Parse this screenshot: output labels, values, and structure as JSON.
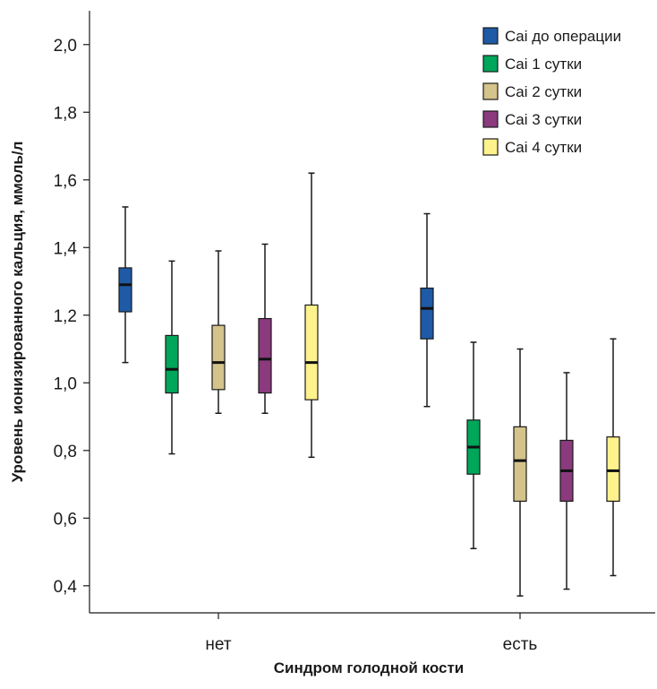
{
  "chart_data": {
    "type": "boxplot",
    "xlabel": "Синдром голодной кости",
    "ylabel": "Уровень ионизированного кальция, ммоль/л",
    "ylim": [
      0.32,
      2.1
    ],
    "y_ticks": [
      "2,0",
      "1,8",
      "1,6",
      "1,4",
      "1,2",
      "1,0",
      "0,8",
      "0,6",
      "0,4"
    ],
    "y_tick_values": [
      2.0,
      1.8,
      1.6,
      1.4,
      1.2,
      1.0,
      0.8,
      0.6,
      0.4
    ],
    "categories": [
      "нет",
      "есть"
    ],
    "legend_position": "top-right",
    "grid": false,
    "series": [
      {
        "name": "Cai до операции",
        "color": "#1f5aa6",
        "boxes": [
          {
            "min": 1.06,
            "q1": 1.21,
            "median": 1.29,
            "q3": 1.34,
            "max": 1.52
          },
          {
            "min": 0.93,
            "q1": 1.13,
            "median": 1.22,
            "q3": 1.28,
            "max": 1.5
          }
        ]
      },
      {
        "name": "Cai 1 сутки",
        "color": "#00a65a",
        "boxes": [
          {
            "min": 0.79,
            "q1": 0.97,
            "median": 1.04,
            "q3": 1.14,
            "max": 1.36
          },
          {
            "min": 0.51,
            "q1": 0.73,
            "median": 0.81,
            "q3": 0.89,
            "max": 1.12
          }
        ]
      },
      {
        "name": "Cai 2 сутки",
        "color": "#d4c38a",
        "boxes": [
          {
            "min": 0.91,
            "q1": 0.98,
            "median": 1.06,
            "q3": 1.17,
            "max": 1.39
          },
          {
            "min": 0.37,
            "q1": 0.65,
            "median": 0.77,
            "q3": 0.87,
            "max": 1.1
          }
        ]
      },
      {
        "name": "Cai 3 сутки",
        "color": "#8b3a7e",
        "boxes": [
          {
            "min": 0.91,
            "q1": 0.97,
            "median": 1.07,
            "q3": 1.19,
            "max": 1.41
          },
          {
            "min": 0.39,
            "q1": 0.65,
            "median": 0.74,
            "q3": 0.83,
            "max": 1.03
          }
        ]
      },
      {
        "name": "Cai 4 сутки",
        "color": "#fdf28c",
        "boxes": [
          {
            "min": 0.78,
            "q1": 0.95,
            "median": 1.06,
            "q3": 1.23,
            "max": 1.62
          },
          {
            "min": 0.43,
            "q1": 0.65,
            "median": 0.74,
            "q3": 0.84,
            "max": 1.13
          }
        ]
      }
    ]
  }
}
